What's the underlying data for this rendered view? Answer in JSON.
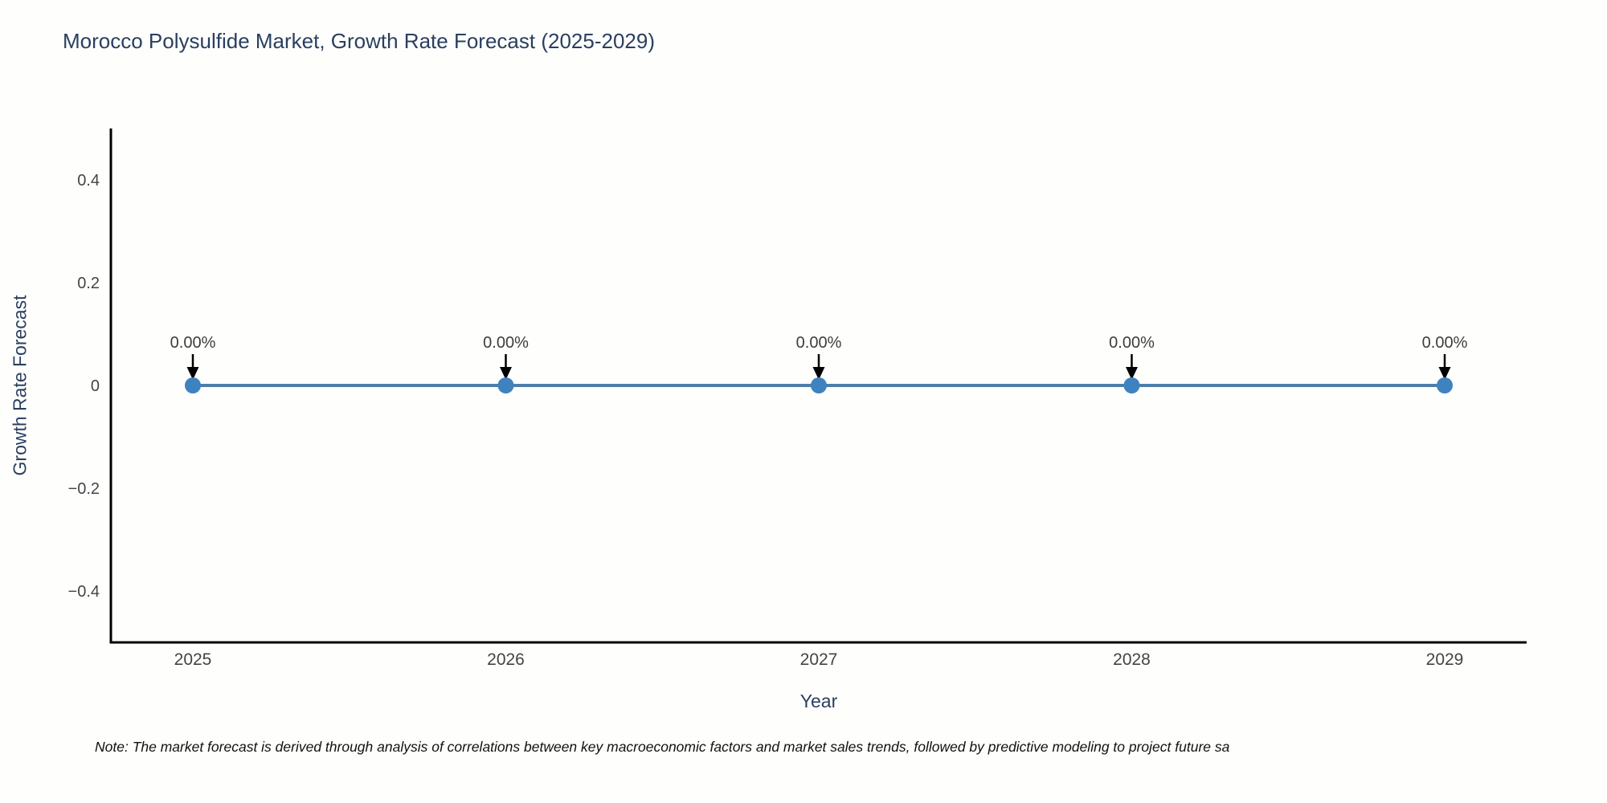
{
  "title": "Morocco Polysulfide Market, Growth Rate Forecast (2025-2029)",
  "note": "Note: The market forecast is derived through analysis of correlations between key macroeconomic factors and market sales trends, followed by predictive modeling to project future sa",
  "chart_data": {
    "type": "line",
    "title": "Morocco Polysulfide Market, Growth Rate Forecast (2025-2029)",
    "xlabel": "Year",
    "ylabel": "Growth Rate Forecast",
    "categories": [
      "2025",
      "2026",
      "2027",
      "2028",
      "2029"
    ],
    "series": [
      {
        "name": "Growth Rate Forecast",
        "values": [
          0,
          0,
          0,
          0,
          0
        ]
      }
    ],
    "point_labels": [
      "0.00%",
      "0.00%",
      "0.00%",
      "0.00%",
      "0.00%"
    ],
    "ylim": [
      -0.5,
      0.5
    ],
    "yticks": [
      0.4,
      0.2,
      0,
      -0.2,
      -0.4
    ],
    "ytick_labels": [
      "0.4",
      "0.2",
      "0",
      "−0.2",
      "−0.4"
    ],
    "grid": false,
    "legend_position": "none",
    "annotations_have_arrows": true,
    "colors": {
      "line": "#4c7ea8",
      "marker": "#3f82c0",
      "axis_line": "#000000",
      "tick_label": "#444444",
      "axis_title": "#2a3f5f",
      "chart_title": "#2a3f5f",
      "annotation_text": "#3d3d3d",
      "arrow": "#000000",
      "background": "#fefefd"
    }
  }
}
